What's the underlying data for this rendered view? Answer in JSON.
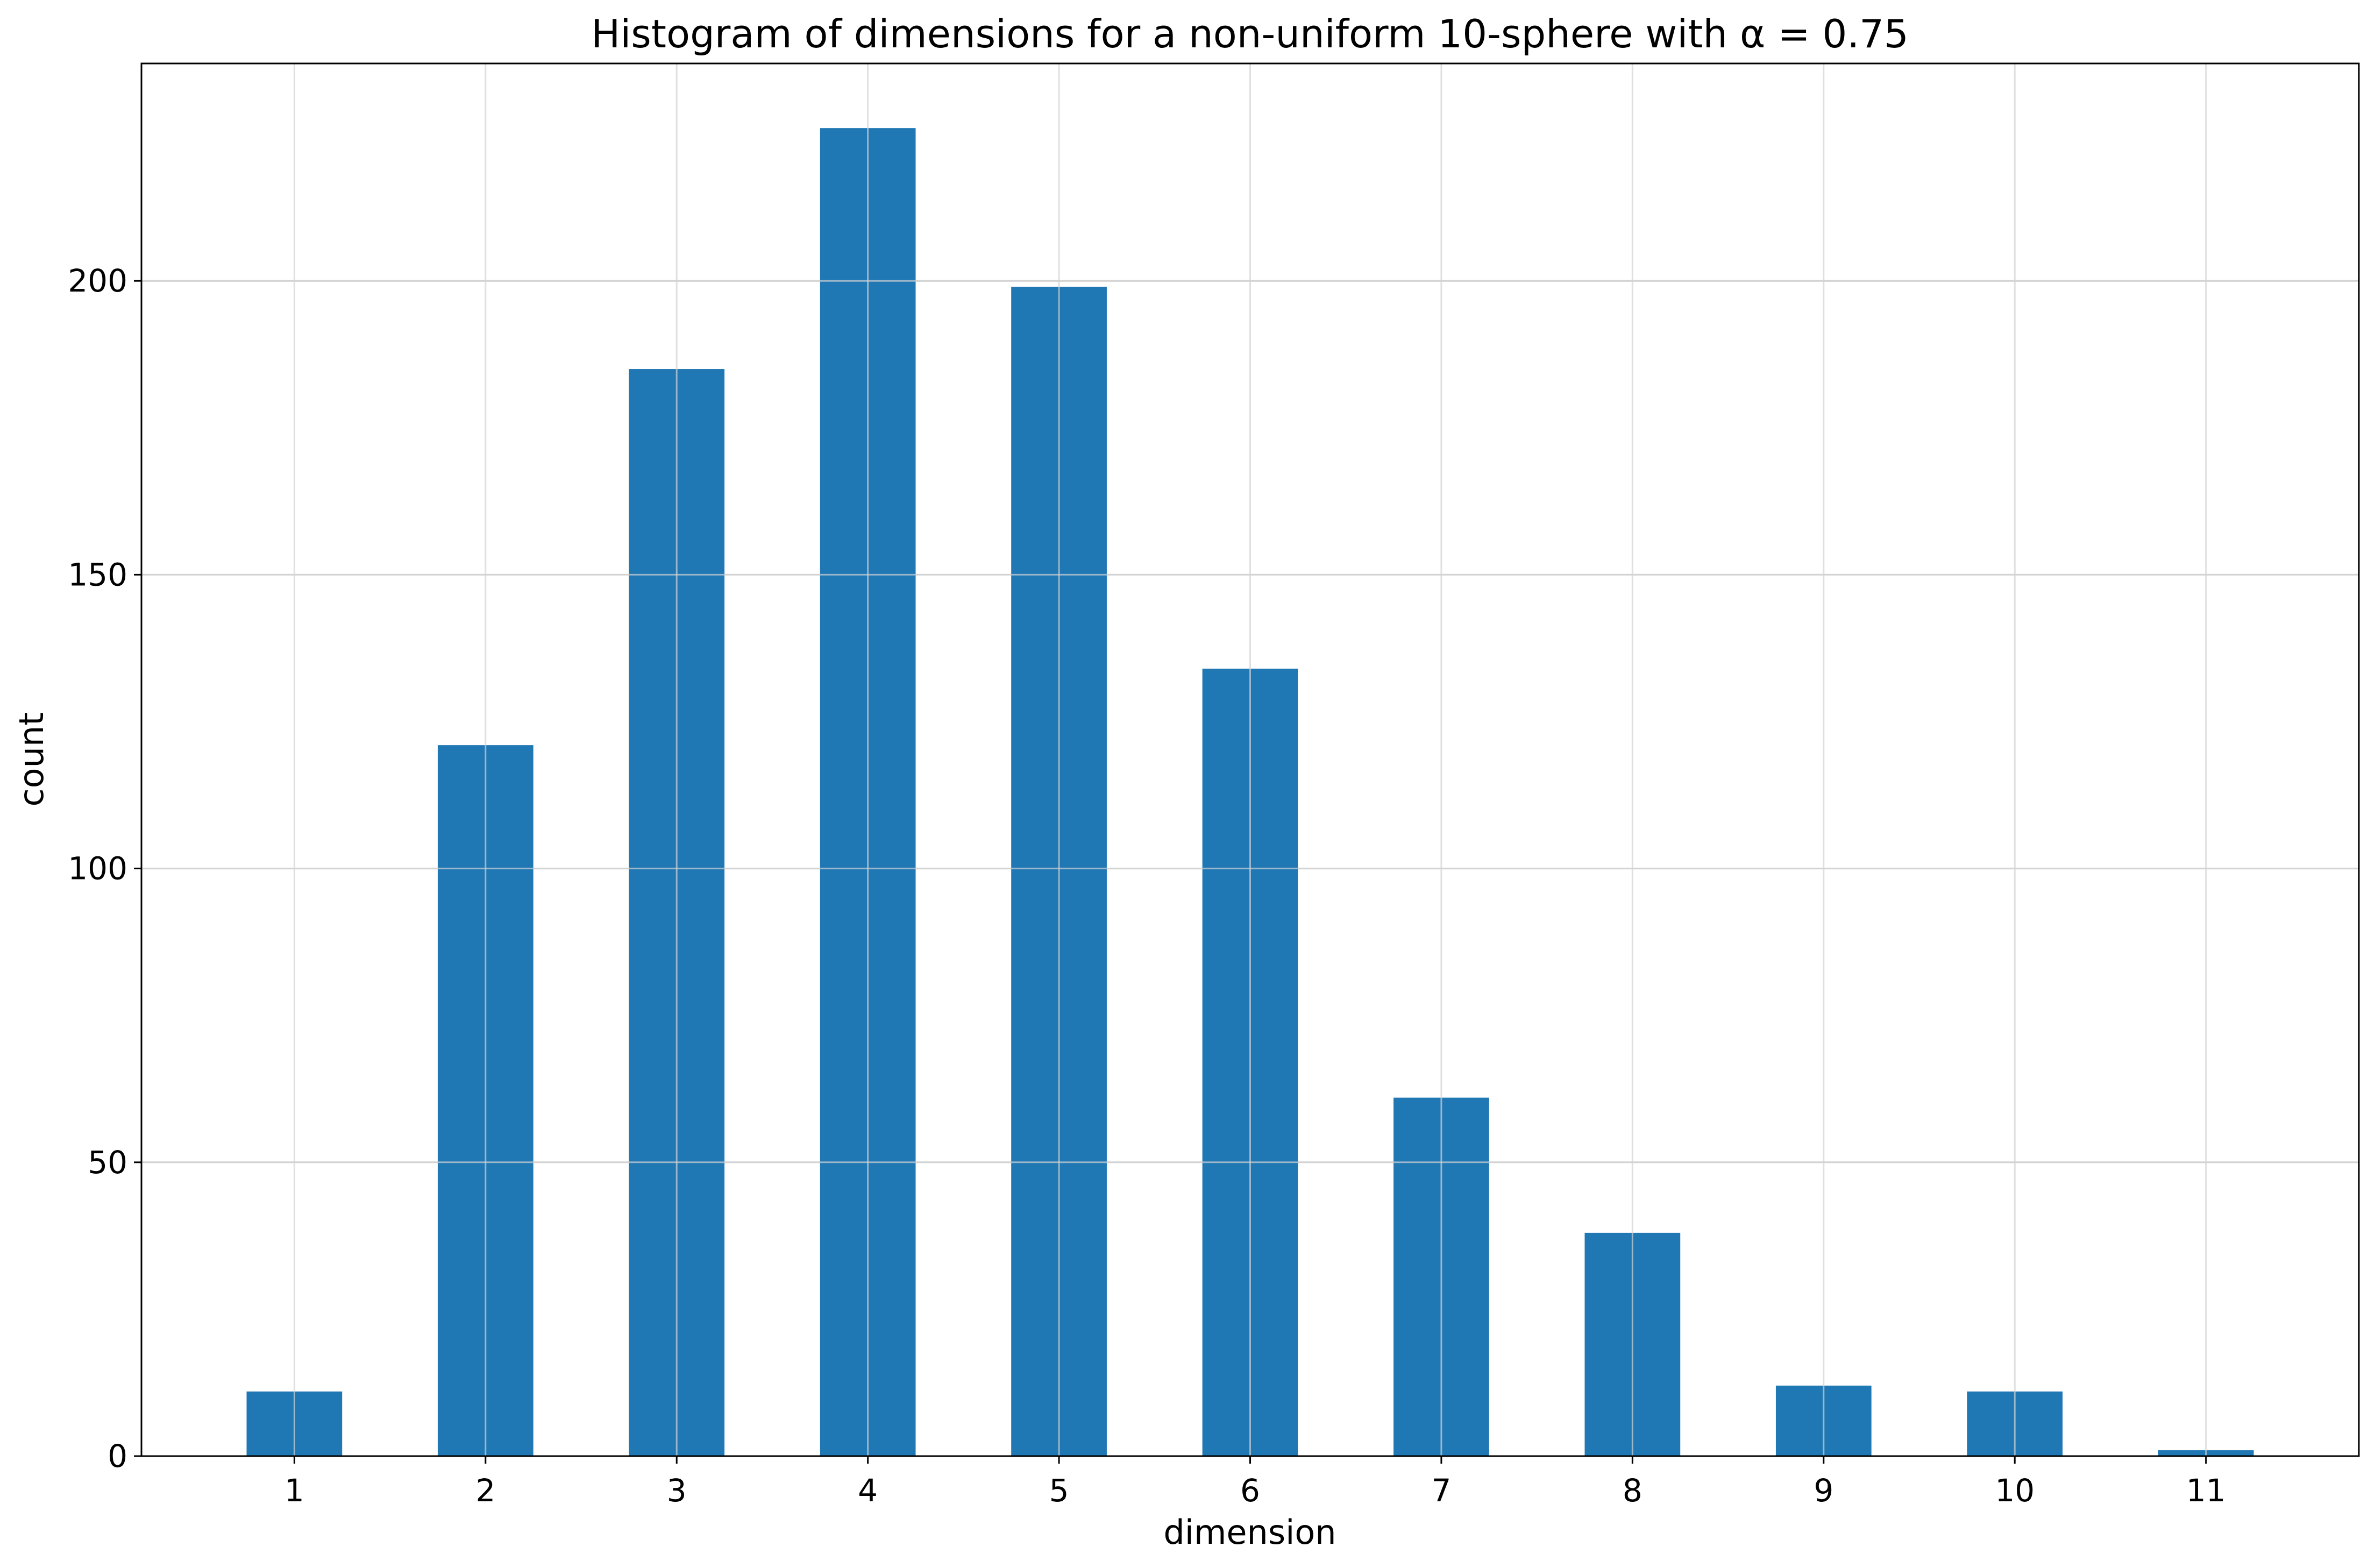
{
  "chart_data": {
    "type": "bar",
    "title": "Histogram of dimensions for a non-uniform 10-sphere with α = 0.75",
    "xlabel": "dimension",
    "ylabel": "count",
    "categories": [
      "1",
      "2",
      "3",
      "4",
      "5",
      "6",
      "7",
      "8",
      "9",
      "10",
      "11"
    ],
    "x": [
      1,
      2,
      3,
      4,
      5,
      6,
      7,
      8,
      9,
      10,
      11
    ],
    "values": [
      11,
      121,
      185,
      226,
      199,
      134,
      61,
      38,
      12,
      11,
      1
    ],
    "xlim": [
      0.2,
      11.8
    ],
    "ylim": [
      0,
      237
    ],
    "yticks": [
      0,
      50,
      100,
      150,
      200
    ],
    "bar_width": 0.5,
    "grid": true,
    "legend": "none",
    "bar_color": "#1f77b4",
    "grid_color": "#d3d3d3"
  }
}
